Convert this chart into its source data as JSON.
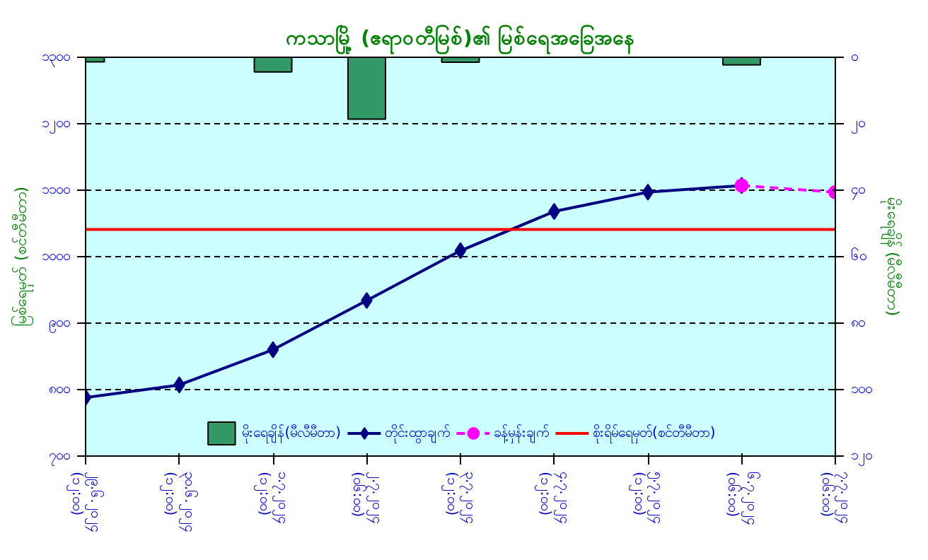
{
  "chart_data": {
    "type": "line",
    "title": "ကသာမြို့ (ဧရာဝတီမြစ်)၏ မြစ်ရေအခြေအနေ",
    "ylabel": "မြစ်ရေမှတ် (စင်တီမီတာ)",
    "y2label": "မိုးရေချိန် (မီလီမီတာ)",
    "categories": [
      "၂၉.၆.၂၀၂၄\n(၁၂:၀၀)",
      "၃၀.၆.၂၀၂၄\n(၁၂:၀၀)",
      "၁.၇.၂၀၂၄\n(၁၂:၀၀)",
      "၂.၇.၂၀၂၄\n(၀၆:၀၀)",
      "၃.၇.၂၀၂၄\n(၁၂:၀၀)",
      "၄.၇.၂၀၂၄\n(၁၂:၀၀)",
      "၅.၇.၂၀၂၄\n(၁၂:၀၀)",
      "၆.၇.၂၀၂၄\n(၀၆:၀၀)",
      "၇.၇.၂၀၂၄\n(၀၆:၀၀)"
    ],
    "ylim": [
      700,
      1300
    ],
    "yticks": [
      {
        "value": 700,
        "label": "၇၀၀"
      },
      {
        "value": 800,
        "label": "၈၀၀"
      },
      {
        "value": 900,
        "label": "၉၀၀"
      },
      {
        "value": 1000,
        "label": "၁၀၀၀"
      },
      {
        "value": 1100,
        "label": "၁၁၀၀"
      },
      {
        "value": 1200,
        "label": "၁၂၀၀"
      },
      {
        "value": 1300,
        "label": "၁၃၀၀"
      }
    ],
    "y2lim": [
      120,
      0
    ],
    "y2ticks": [
      {
        "value": 0,
        "label": "၀"
      },
      {
        "value": 20,
        "label": "၂၀"
      },
      {
        "value": 40,
        "label": "၄၀"
      },
      {
        "value": 60,
        "label": "၆၀"
      },
      {
        "value": 80,
        "label": "၈၀"
      },
      {
        "value": 100,
        "label": "၁၀၀"
      },
      {
        "value": 120,
        "label": "၁၂၀"
      }
    ],
    "series": [
      {
        "name": "မိုးရေချိန်(မီလီမီတာ)",
        "type": "bar",
        "axis": "y2",
        "color": "#339966",
        "values": [
          1.4,
          null,
          4.4,
          18.6,
          1.5,
          null,
          null,
          2.3,
          null
        ]
      },
      {
        "name": "တိုင်းထွာချက်",
        "color": "#000080",
        "marker": "diamond",
        "values": [
          788,
          807,
          860,
          934,
          1009,
          1068,
          1097,
          1107,
          null
        ]
      },
      {
        "name": "ခန့်မှန်းချက်",
        "color": "#ff00ff",
        "marker": "circle",
        "line_style": "dashed",
        "values": [
          null,
          null,
          null,
          null,
          null,
          null,
          null,
          1107,
          1097
        ]
      }
    ],
    "ref_lines": [
      {
        "axis": "y",
        "value": 1041,
        "label": "စိုးရိမ်ရေမှတ်(စင်တီမီတာ)",
        "color": "#ff0000"
      }
    ],
    "grid": "y",
    "legend": "bottom"
  }
}
